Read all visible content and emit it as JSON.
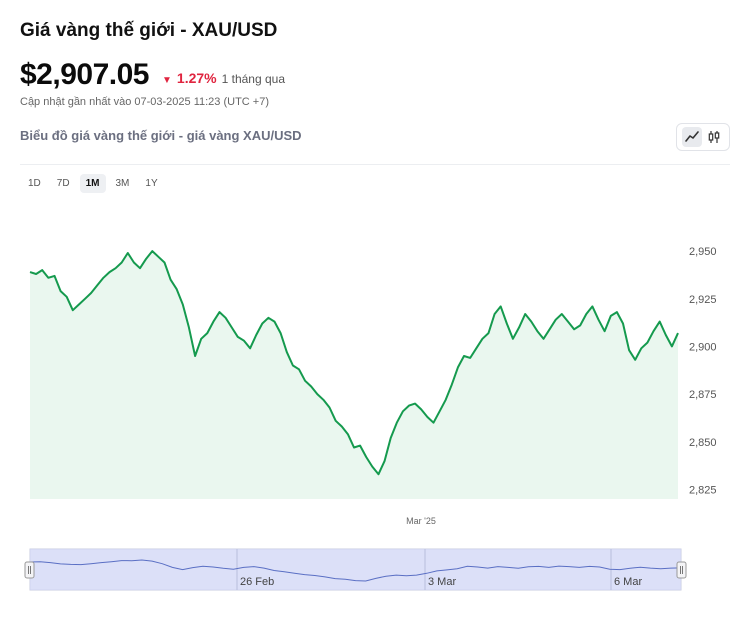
{
  "header": {
    "title": "Giá vàng thế giới - XAU/USD",
    "price": "$2,907.05",
    "change_pct": "1.27%",
    "change_period": "1 tháng qua",
    "updated": "Cập nhật gần nhất vào 07-03-2025 11:23 (UTC +7)"
  },
  "chart_section": {
    "title": "Biểu đồ giá vàng thế giới - giá vàng XAU/USD",
    "chart_type_buttons": [
      "line-chart-icon",
      "candlestick-icon"
    ],
    "ranges": [
      "1D",
      "7D",
      "1M",
      "3M",
      "1Y"
    ],
    "active_range": "1M"
  },
  "colors": {
    "line": "#159a4e",
    "fill": "#eaf7ef",
    "negative": "#e0243f",
    "navigator_fill": "#d0d6f5",
    "navigator_line": "#5a6fc4"
  },
  "chart_data": {
    "type": "area",
    "title": "",
    "xlabel": "",
    "ylabel": "",
    "ylim": [
      2820,
      2960
    ],
    "yticks": [
      2825,
      2850,
      2875,
      2900,
      2925,
      2950
    ],
    "x_ticks": [
      "Mar '25"
    ],
    "navigator_ticks": [
      "26 Feb",
      "3 Mar",
      "6 Mar"
    ],
    "series": [
      {
        "values": [
          2939,
          2938,
          2940,
          2936,
          2937,
          2929,
          2926,
          2919,
          2922,
          2925,
          2928,
          2932,
          2936,
          2939,
          2941,
          2944,
          2949,
          2944,
          2941,
          2946,
          2950,
          2947,
          2944,
          2935,
          2930,
          2922,
          2910,
          2895,
          2904,
          2907,
          2913,
          2918,
          2915,
          2910,
          2905,
          2903,
          2899,
          2906,
          2912,
          2915,
          2913,
          2907,
          2897,
          2890,
          2888,
          2882,
          2879,
          2875,
          2872,
          2868,
          2861,
          2858,
          2854,
          2847,
          2848,
          2842,
          2837,
          2833,
          2840,
          2852,
          2860,
          2866,
          2869,
          2870,
          2867,
          2863,
          2860,
          2866,
          2872,
          2880,
          2889,
          2895,
          2894,
          2899,
          2904,
          2907,
          2917,
          2921,
          2912,
          2904,
          2910,
          2917,
          2913,
          2908,
          2904,
          2909,
          2914,
          2917,
          2913,
          2909,
          2911,
          2917,
          2921,
          2914,
          2908,
          2916,
          2918,
          2912,
          2898,
          2893,
          2899,
          2902,
          2908,
          2913,
          2906,
          2900,
          2907
        ]
      }
    ],
    "navigator_values": [
      2939,
      2940,
      2936,
      2929,
      2926,
      2925,
      2930,
      2936,
      2941,
      2947,
      2946,
      2950,
      2944,
      2930,
      2910,
      2898,
      2909,
      2916,
      2912,
      2905,
      2900,
      2910,
      2914,
      2906,
      2893,
      2886,
      2878,
      2871,
      2866,
      2858,
      2849,
      2845,
      2838,
      2836,
      2850,
      2862,
      2868,
      2864,
      2868,
      2878,
      2891,
      2896,
      2903,
      2916,
      2912,
      2906,
      2914,
      2910,
      2905,
      2913,
      2915,
      2910,
      2917,
      2914,
      2910,
      2915,
      2912,
      2900,
      2898,
      2905,
      2911,
      2906,
      2903,
      2906,
      2907
    ]
  }
}
